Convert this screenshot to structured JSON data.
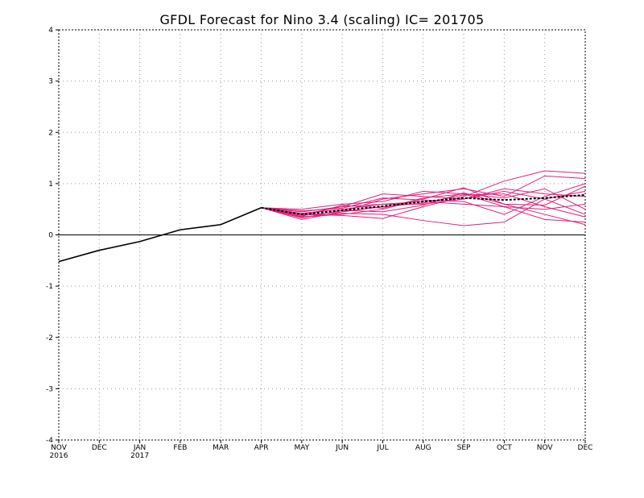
{
  "chart_data": {
    "type": "line",
    "title": "GFDL Forecast for Nino 3.4 (scaling) IC= 201705",
    "xlabel": "",
    "ylabel": "",
    "x_ticks": [
      "NOV",
      "DEC",
      "JAN",
      "FEB",
      "MAR",
      "APR",
      "MAY",
      "JUN",
      "JUL",
      "AUG",
      "SEP",
      "OCT",
      "NOV",
      "DEC"
    ],
    "x_year_labels": [
      {
        "month_index": 0,
        "label": "2016"
      },
      {
        "month_index": 2,
        "label": "2017"
      }
    ],
    "y_ticks": [
      4,
      3,
      2,
      1,
      0,
      -1,
      -2,
      -3,
      -4
    ],
    "ylim": [
      -4,
      4
    ],
    "grid": true,
    "zero_line": true,
    "colors": {
      "observed": "#000000",
      "ensemble": "#e0207c",
      "ensemble_mean": "#000000"
    },
    "observed": {
      "x_index": [
        0,
        1,
        2,
        3,
        4,
        5
      ],
      "values": [
        -0.52,
        -0.3,
        -0.13,
        0.1,
        0.2,
        0.53
      ]
    },
    "ensemble": {
      "x_index": [
        5,
        6,
        7,
        8,
        9,
        10,
        11,
        12,
        13
      ],
      "members": [
        [
          0.53,
          0.3,
          0.45,
          0.55,
          0.62,
          0.78,
          0.8,
          0.55,
          0.35
        ],
        [
          0.53,
          0.35,
          0.4,
          0.5,
          0.7,
          0.92,
          0.6,
          0.4,
          0.2
        ],
        [
          0.53,
          0.4,
          0.38,
          0.32,
          0.55,
          0.75,
          1.05,
          1.25,
          1.2
        ],
        [
          0.53,
          0.45,
          0.55,
          0.8,
          0.75,
          0.7,
          0.85,
          0.7,
          0.4
        ],
        [
          0.53,
          0.35,
          0.42,
          0.4,
          0.28,
          0.18,
          0.25,
          0.7,
          0.85
        ],
        [
          0.53,
          0.5,
          0.6,
          0.65,
          0.85,
          0.8,
          0.55,
          0.5,
          0.6
        ],
        [
          0.53,
          0.42,
          0.5,
          0.6,
          0.65,
          0.6,
          0.55,
          0.3,
          0.25
        ],
        [
          0.53,
          0.38,
          0.45,
          0.7,
          0.8,
          0.9,
          0.75,
          1.15,
          1.1
        ],
        [
          0.53,
          0.4,
          0.55,
          0.6,
          0.6,
          0.7,
          0.9,
          0.8,
          0.75
        ],
        [
          0.53,
          0.33,
          0.48,
          0.45,
          0.58,
          0.82,
          0.6,
          0.58,
          0.95
        ],
        [
          0.53,
          0.47,
          0.52,
          0.72,
          0.68,
          0.65,
          0.4,
          0.75,
          1.0
        ],
        [
          0.53,
          0.36,
          0.58,
          0.52,
          0.72,
          0.8,
          0.72,
          0.9,
          0.5
        ]
      ]
    },
    "ensemble_mean": {
      "x_index": [
        5,
        6,
        7,
        8,
        9,
        10,
        11,
        12,
        13
      ],
      "values": [
        0.53,
        0.4,
        0.48,
        0.56,
        0.65,
        0.72,
        0.68,
        0.72,
        0.78
      ]
    }
  }
}
